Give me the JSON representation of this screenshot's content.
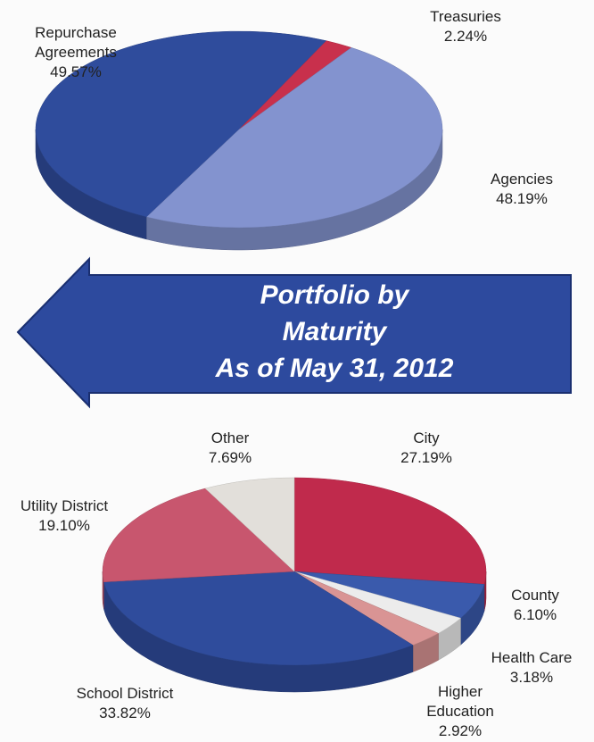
{
  "chart_data": [
    {
      "type": "pie",
      "categories": [
        "Repurchase Agreements",
        "Treasuries",
        "Agencies"
      ],
      "values": [
        49.57,
        2.24,
        48.19
      ],
      "value_labels": [
        "49.57%",
        "2.24%",
        "48.19%"
      ],
      "colors": [
        "#2f4c9c",
        "#c8304c",
        "#8393cf"
      ]
    },
    {
      "type": "pie",
      "categories": [
        "City",
        "County",
        "Health Care",
        "Higher Education",
        "School District",
        "Utility District",
        "Other"
      ],
      "values": [
        27.19,
        6.1,
        3.18,
        2.92,
        33.82,
        19.1,
        7.69
      ],
      "value_labels": [
        "27.19%",
        "6.10%",
        "3.18%",
        "2.92%",
        "33.82%",
        "19.10%",
        "7.69%"
      ],
      "colors": [
        "#c02a4c",
        "#3a5aac",
        "#ececec",
        "#d99494",
        "#2f4c9c",
        "#c8566e",
        "#e2dfda"
      ]
    }
  ],
  "banner": {
    "lines": [
      "Portfolio by",
      "Maturity",
      "As of May 31, 2012"
    ]
  }
}
